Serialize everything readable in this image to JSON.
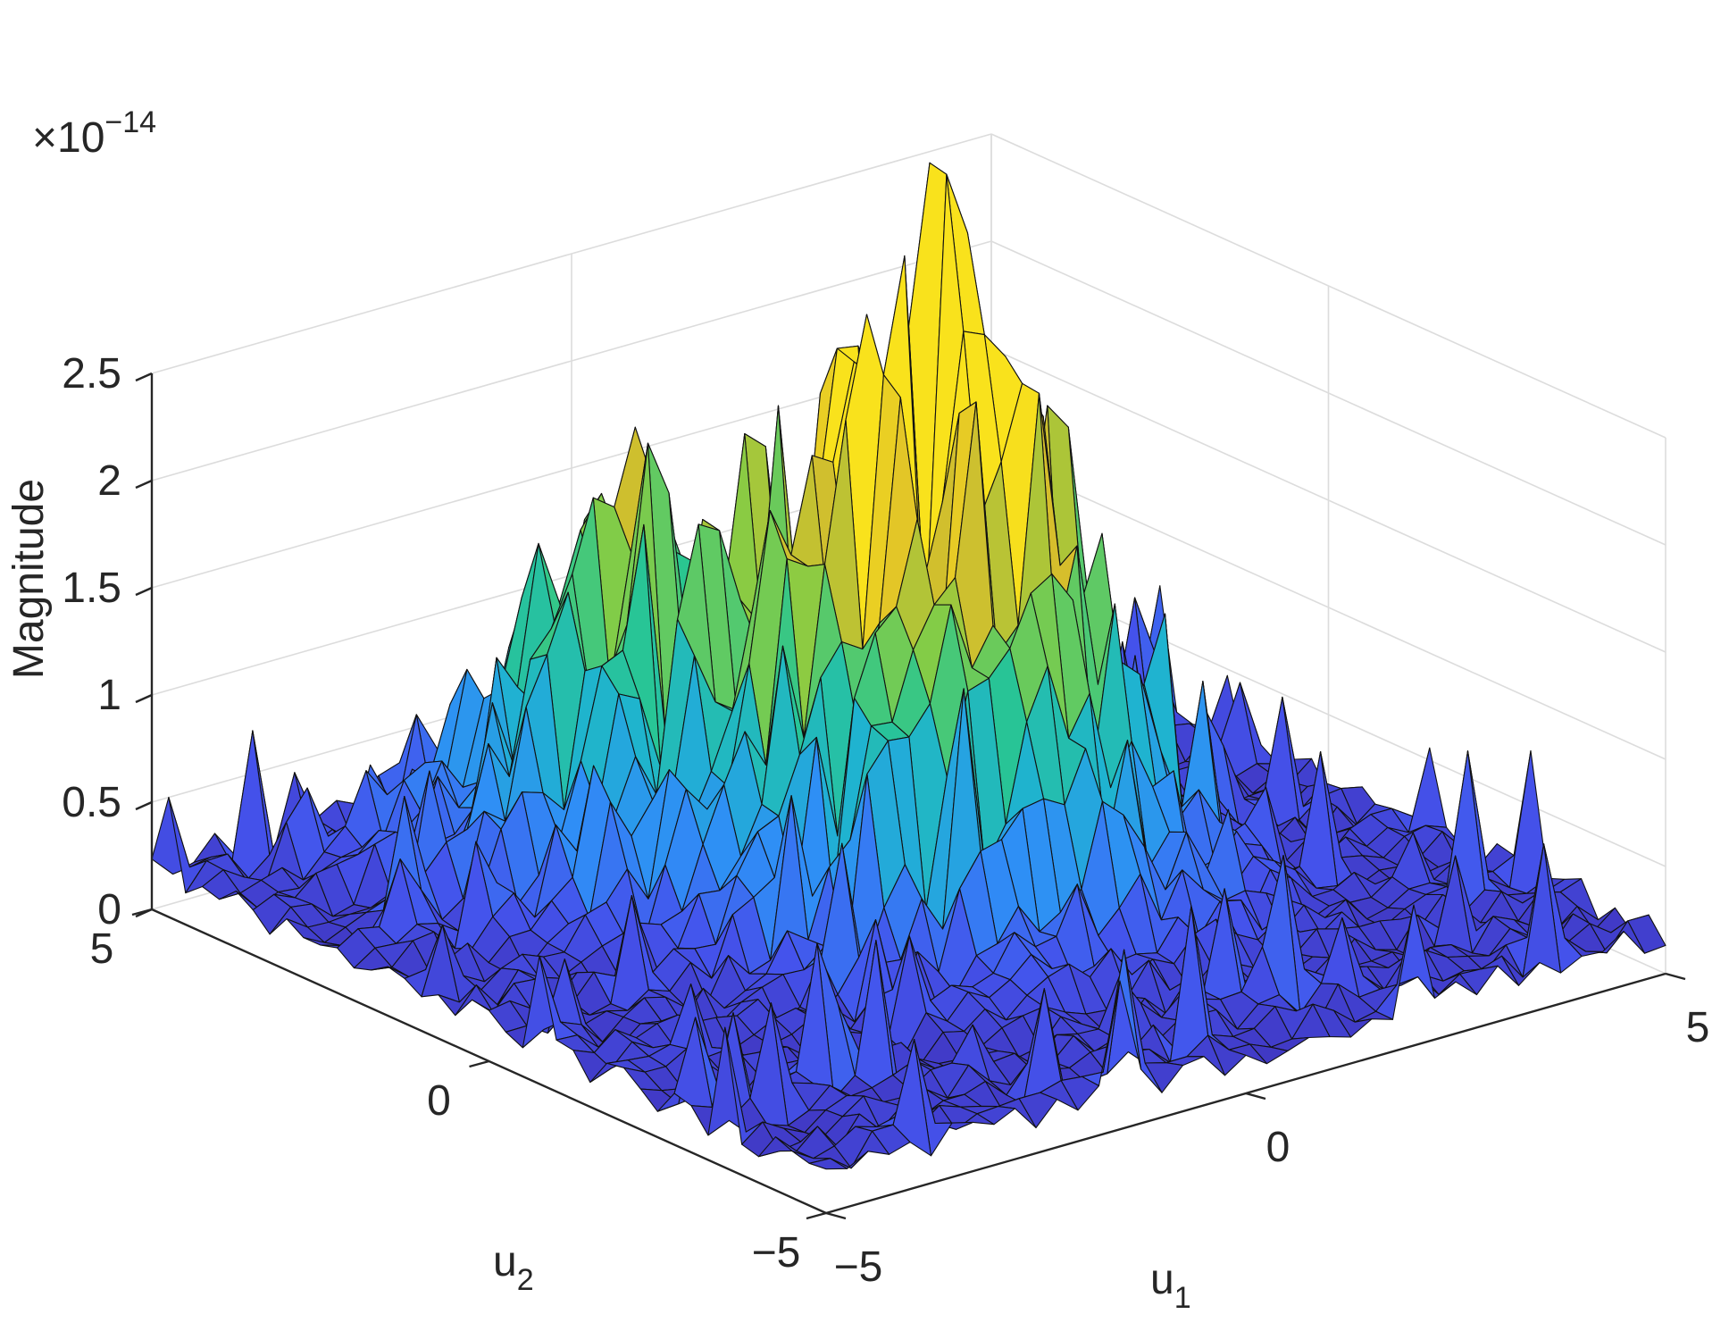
{
  "chart_data": {
    "type": "surface",
    "title": "",
    "xlabel": "u",
    "xlabel_sub": "1",
    "ylabel": "u",
    "ylabel_sub": "2",
    "zlabel": "Magnitude",
    "z_exponent_prefix": "×10",
    "z_exponent": "−14",
    "x_ticks": [
      "−5",
      "0",
      "5"
    ],
    "y_ticks": [
      "−5",
      "0",
      "5"
    ],
    "z_ticks": [
      "0",
      "0.5",
      "1",
      "1.5",
      "2",
      "2.5"
    ],
    "xlim": [
      -5,
      5
    ],
    "ylim": [
      -5,
      5
    ],
    "zlim": [
      0,
      2.5
    ],
    "z_scale": 1e-14,
    "grid": true,
    "colormap": [
      "#3e26a8",
      "#4453ec",
      "#2f8ef6",
      "#1fb3d0",
      "#29c691",
      "#86cc44",
      "#dcbd2a",
      "#f9e21c"
    ],
    "peaks": [
      {
        "u1": 0.5,
        "u2": -0.5,
        "height": 2.2
      },
      {
        "u1": -1.5,
        "u2": 2.5,
        "height": 1.6
      },
      {
        "u1": -0.5,
        "u2": 0.5,
        "height": 1.3
      }
    ],
    "background_level": 0.2
  }
}
